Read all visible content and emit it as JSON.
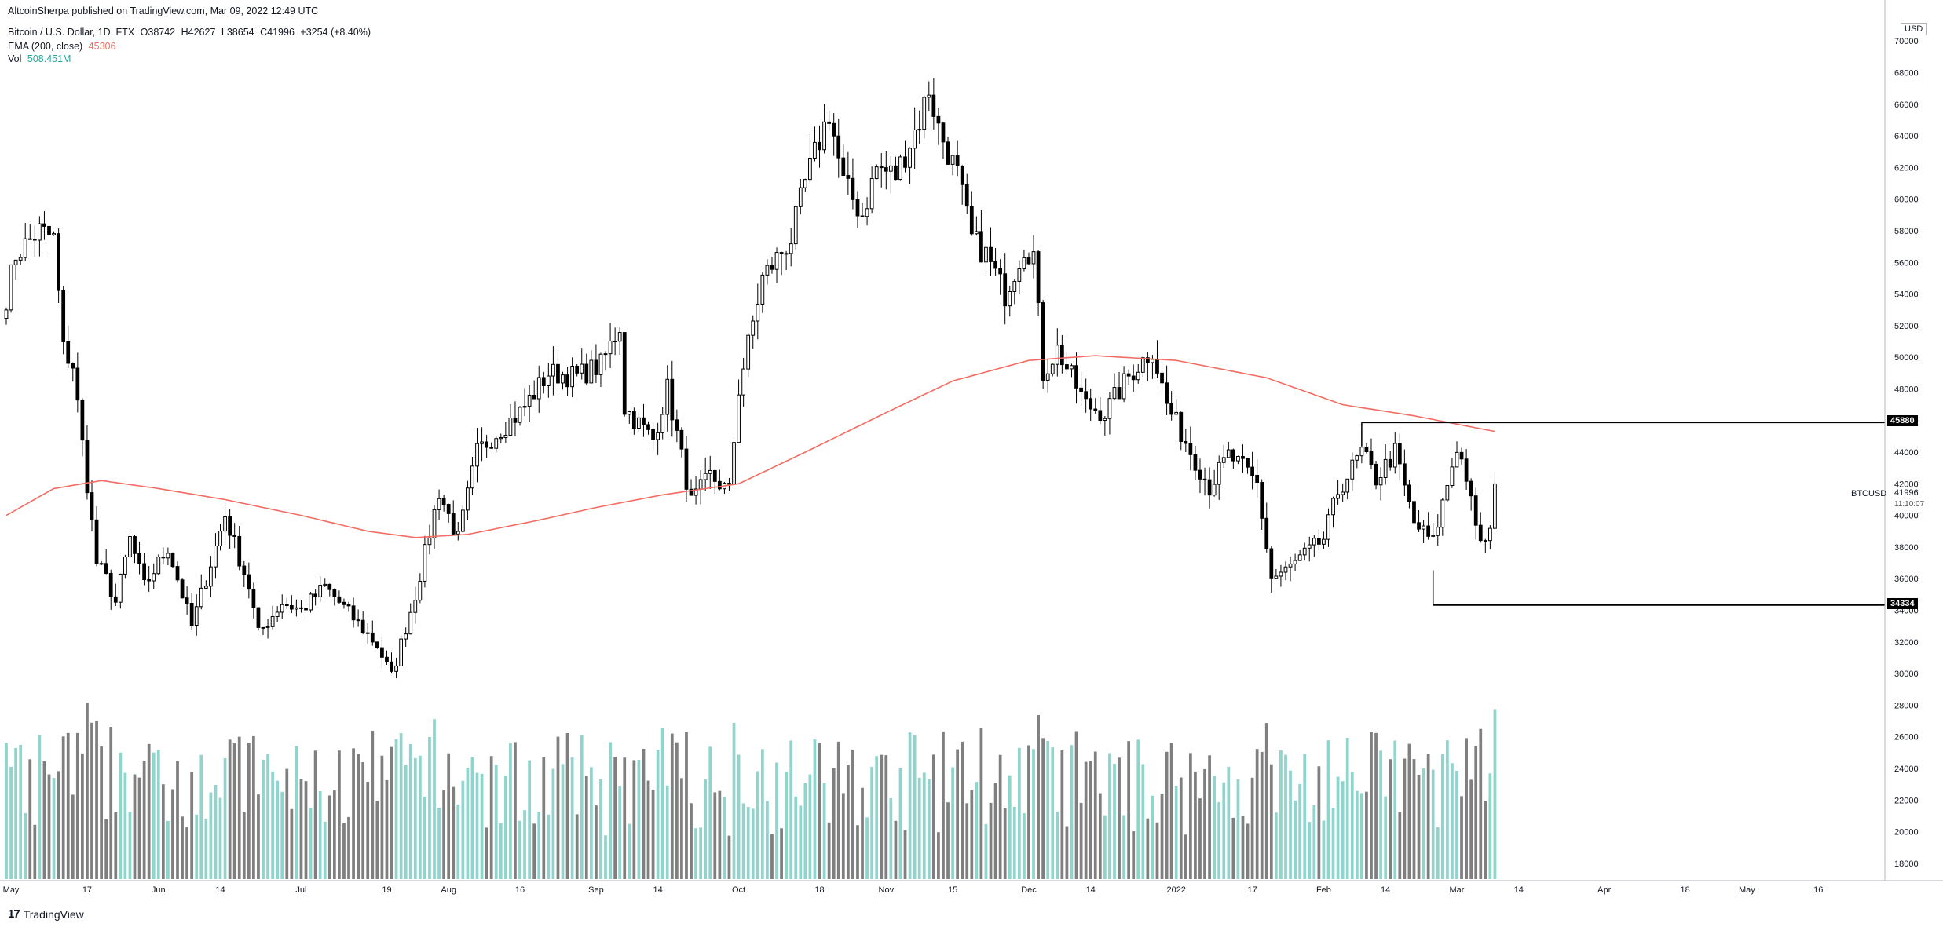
{
  "header": {
    "published": "AltcoinSherpa published on TradingView.com, Mar 09, 2022 12:49 UTC",
    "symbol": "Bitcoin / U.S. Dollar, 1D, FTX",
    "ohlc": {
      "open": "O38742",
      "high": "H42627",
      "low": "L38654",
      "close": "C41996",
      "change": "+3254 (+8.40%)"
    },
    "ema_label": "EMA (200, close)",
    "ema_value": "45306",
    "vol_label": "Vol",
    "vol_value": "508.451M"
  },
  "brand": {
    "logo": "17",
    "name": "TradingView"
  },
  "axis": {
    "currency": "USD",
    "ticker": "BTCUSD",
    "last_price": "41996",
    "countdown": "11:10:07",
    "levels": [
      {
        "label": "45880",
        "value": 45880
      },
      {
        "label": "34334",
        "value": 34334
      }
    ]
  },
  "colors": {
    "candle": "#000000",
    "ema": "#f26c62",
    "vol_up": "#8fd4cd",
    "vol_down": "#7f7f7f",
    "grid": "#f0f3fa"
  },
  "chart_data": {
    "type": "candlestick",
    "ylim": [
      17000,
      71500
    ],
    "y_ticks": [
      18000,
      20000,
      22000,
      24000,
      26000,
      28000,
      30000,
      32000,
      34000,
      36000,
      38000,
      40000,
      42000,
      44000,
      46000,
      48000,
      50000,
      52000,
      54000,
      56000,
      58000,
      60000,
      62000,
      64000,
      66000,
      68000,
      70000
    ],
    "x_labels": [
      {
        "label": "May",
        "date": "2021-05-01"
      },
      {
        "label": "17",
        "date": "2021-05-17"
      },
      {
        "label": "Jun",
        "date": "2021-06-01"
      },
      {
        "label": "14",
        "date": "2021-06-14"
      },
      {
        "label": "Jul",
        "date": "2021-07-01"
      },
      {
        "label": "19",
        "date": "2021-07-19"
      },
      {
        "label": "Aug",
        "date": "2021-08-01"
      },
      {
        "label": "16",
        "date": "2021-08-16"
      },
      {
        "label": "Sep",
        "date": "2021-09-01"
      },
      {
        "label": "14",
        "date": "2021-09-14"
      },
      {
        "label": "Oct",
        "date": "2021-10-01"
      },
      {
        "label": "18",
        "date": "2021-10-18"
      },
      {
        "label": "Nov",
        "date": "2021-11-01"
      },
      {
        "label": "15",
        "date": "2021-11-15"
      },
      {
        "label": "Dec",
        "date": "2021-12-01"
      },
      {
        "label": "14",
        "date": "2021-12-14"
      },
      {
        "label": "2022",
        "date": "2022-01-01"
      },
      {
        "label": "17",
        "date": "2022-01-17"
      },
      {
        "label": "Feb",
        "date": "2022-02-01"
      },
      {
        "label": "14",
        "date": "2022-02-14"
      },
      {
        "label": "Mar",
        "date": "2022-03-01"
      },
      {
        "label": "14",
        "date": "2022-03-14"
      },
      {
        "label": "Apr",
        "date": "2022-04-01"
      },
      {
        "label": "18",
        "date": "2022-04-18"
      },
      {
        "label": "May",
        "date": "2022-05-01"
      },
      {
        "label": "16",
        "date": "2022-05-16"
      }
    ],
    "x_range": [
      "2021-04-30",
      "2022-05-30"
    ],
    "price_anchors": [
      [
        "2021-04-30",
        53800
      ],
      [
        "2021-05-02",
        56500
      ],
      [
        "2021-05-07",
        58000
      ],
      [
        "2021-05-10",
        57500
      ],
      [
        "2021-05-12",
        50500
      ],
      [
        "2021-05-14",
        49500
      ],
      [
        "2021-05-16",
        44500
      ],
      [
        "2021-05-19",
        37000
      ],
      [
        "2021-05-21",
        36000
      ],
      [
        "2021-05-23",
        34500
      ],
      [
        "2021-05-26",
        38500
      ],
      [
        "2021-05-29",
        35500
      ],
      [
        "2021-06-03",
        38000
      ],
      [
        "2021-06-08",
        33000
      ],
      [
        "2021-06-15",
        40000
      ],
      [
        "2021-06-20",
        35500
      ],
      [
        "2021-06-22",
        32500
      ],
      [
        "2021-06-27",
        34500
      ],
      [
        "2021-07-01",
        34000
      ],
      [
        "2021-07-06",
        35500
      ],
      [
        "2021-07-12",
        33500
      ],
      [
        "2021-07-17",
        31800
      ],
      [
        "2021-07-20",
        29800
      ],
      [
        "2021-07-25",
        35000
      ],
      [
        "2021-07-30",
        41500
      ],
      [
        "2021-08-03",
        38500
      ],
      [
        "2021-08-07",
        44000
      ],
      [
        "2021-08-12",
        45500
      ],
      [
        "2021-08-16",
        46500
      ],
      [
        "2021-08-22",
        49000
      ],
      [
        "2021-08-28",
        48800
      ],
      [
        "2021-09-02",
        49500
      ],
      [
        "2021-09-06",
        52000
      ],
      [
        "2021-09-07",
        46800
      ],
      [
        "2021-09-13",
        44800
      ],
      [
        "2021-09-16",
        48000
      ],
      [
        "2021-09-21",
        40800
      ],
      [
        "2021-09-25",
        42500
      ],
      [
        "2021-09-29",
        41500
      ],
      [
        "2021-10-01",
        48000
      ],
      [
        "2021-10-06",
        55000
      ],
      [
        "2021-10-12",
        57500
      ],
      [
        "2021-10-15",
        61000
      ],
      [
        "2021-10-20",
        65500
      ],
      [
        "2021-10-23",
        61000
      ],
      [
        "2021-10-27",
        59000
      ],
      [
        "2021-10-30",
        62000
      ],
      [
        "2021-11-03",
        61500
      ],
      [
        "2021-11-08",
        65000
      ],
      [
        "2021-11-10",
        67000
      ],
      [
        "2021-11-12",
        64500
      ],
      [
        "2021-11-16",
        61500
      ],
      [
        "2021-11-19",
        57500
      ],
      [
        "2021-11-22",
        56500
      ],
      [
        "2021-11-26",
        54000
      ],
      [
        "2021-11-30",
        57000
      ],
      [
        "2021-12-02",
        56500
      ],
      [
        "2021-12-04",
        49000
      ],
      [
        "2021-12-07",
        50500
      ],
      [
        "2021-12-13",
        47000
      ],
      [
        "2021-12-17",
        46500
      ],
      [
        "2021-12-22",
        48800
      ],
      [
        "2021-12-27",
        50500
      ],
      [
        "2021-12-30",
        47000
      ],
      [
        "2022-01-05",
        43500
      ],
      [
        "2022-01-08",
        41800
      ],
      [
        "2022-01-12",
        43800
      ],
      [
        "2022-01-15",
        43000
      ],
      [
        "2022-01-18",
        42000
      ],
      [
        "2022-01-21",
        36000
      ],
      [
        "2022-01-24",
        36500
      ],
      [
        "2022-01-28",
        37500
      ],
      [
        "2022-02-01",
        38500
      ],
      [
        "2022-02-04",
        41500
      ],
      [
        "2022-02-09",
        44000
      ],
      [
        "2022-02-12",
        42300
      ],
      [
        "2022-02-16",
        44000
      ],
      [
        "2022-02-20",
        39500
      ],
      [
        "2022-02-24",
        38300
      ],
      [
        "2022-02-28",
        43200
      ],
      [
        "2022-03-01",
        44400
      ],
      [
        "2022-03-03",
        42500
      ],
      [
        "2022-03-05",
        39000
      ],
      [
        "2022-03-07",
        38200
      ],
      [
        "2022-03-08",
        38742
      ],
      [
        "2022-03-09",
        41996
      ]
    ],
    "ema_anchors": [
      [
        "2021-04-30",
        40000
      ],
      [
        "2021-05-10",
        41700
      ],
      [
        "2021-05-20",
        42200
      ],
      [
        "2021-06-01",
        41700
      ],
      [
        "2021-06-15",
        41000
      ],
      [
        "2021-07-01",
        40000
      ],
      [
        "2021-07-15",
        39000
      ],
      [
        "2021-07-25",
        38600
      ],
      [
        "2021-08-05",
        38800
      ],
      [
        "2021-08-20",
        39700
      ],
      [
        "2021-09-01",
        40500
      ],
      [
        "2021-09-15",
        41300
      ],
      [
        "2021-10-01",
        42000
      ],
      [
        "2021-10-15",
        44000
      ],
      [
        "2021-11-01",
        46500
      ],
      [
        "2021-11-15",
        48500
      ],
      [
        "2021-12-01",
        49800
      ],
      [
        "2021-12-15",
        50100
      ],
      [
        "2022-01-01",
        49800
      ],
      [
        "2022-01-20",
        48700
      ],
      [
        "2022-02-05",
        47000
      ],
      [
        "2022-02-20",
        46300
      ],
      [
        "2022-03-09",
        45306
      ]
    ],
    "levels": [
      {
        "value": 45880,
        "from": "2022-02-09"
      },
      {
        "value": 34334,
        "from": "2022-02-24"
      }
    ],
    "volume_range": [
      18000,
      31500
    ]
  }
}
